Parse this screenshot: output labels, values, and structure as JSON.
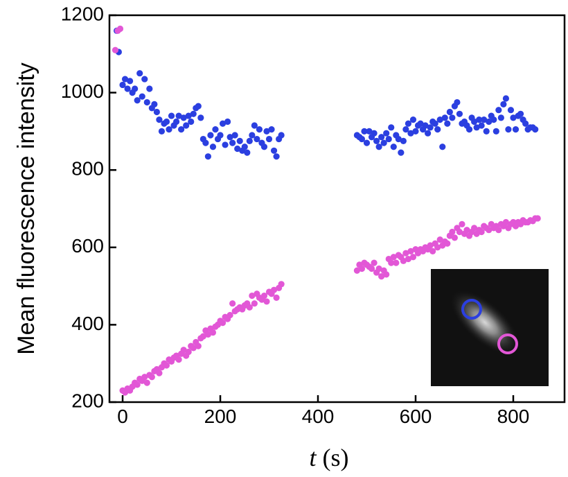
{
  "chart_data": {
    "type": "scatter",
    "x_label_symbol": "t",
    "x_label_unit": "(s)",
    "y_label": "Mean fluorescence intensity",
    "xlim": [
      -27,
      905
    ],
    "ylim": [
      200,
      1200
    ],
    "xticks": [
      0,
      200,
      400,
      600,
      800
    ],
    "yticks": [
      200,
      400,
      600,
      800,
      1000,
      1200
    ],
    "series": [
      {
        "color": "#2b3fe0",
        "x": [
          -12,
          -8,
          0,
          5,
          10,
          15,
          20,
          25,
          30,
          35,
          40,
          45,
          50,
          55,
          60,
          65,
          70,
          75,
          80,
          85,
          90,
          95,
          100,
          105,
          110,
          115,
          120,
          125,
          130,
          135,
          140,
          145,
          150,
          155,
          160,
          165,
          170,
          175,
          180,
          185,
          190,
          195,
          200,
          205,
          210,
          215,
          220,
          225,
          230,
          235,
          240,
          245,
          250,
          255,
          260,
          265,
          270,
          275,
          280,
          285,
          290,
          295,
          300,
          305,
          310,
          315,
          320,
          325,
          480,
          485,
          490,
          495,
          500,
          505,
          510,
          515,
          520,
          525,
          530,
          535,
          540,
          545,
          550,
          555,
          560,
          565,
          570,
          575,
          580,
          585,
          590,
          595,
          600,
          605,
          610,
          615,
          620,
          625,
          630,
          635,
          640,
          645,
          650,
          655,
          660,
          665,
          670,
          675,
          680,
          685,
          690,
          695,
          700,
          705,
          710,
          715,
          720,
          725,
          730,
          735,
          740,
          745,
          750,
          755,
          760,
          765,
          770,
          775,
          780,
          785,
          790,
          795,
          800,
          805,
          810,
          815,
          820,
          825,
          830,
          835,
          840,
          845
        ],
        "values": [
          1160,
          1105,
          1020,
          1035,
          1010,
          1030,
          1000,
          1010,
          980,
          1050,
          990,
          1035,
          975,
          1010,
          960,
          970,
          950,
          930,
          900,
          920,
          925,
          905,
          940,
          915,
          925,
          940,
          905,
          935,
          915,
          940,
          925,
          945,
          960,
          965,
          935,
          880,
          870,
          835,
          890,
          860,
          905,
          880,
          890,
          920,
          865,
          925,
          885,
          870,
          890,
          855,
          875,
          850,
          860,
          845,
          875,
          890,
          915,
          880,
          905,
          870,
          860,
          900,
          880,
          905,
          850,
          835,
          880,
          890,
          890,
          885,
          880,
          900,
          870,
          900,
          885,
          895,
          875,
          860,
          885,
          870,
          895,
          880,
          910,
          860,
          890,
          880,
          845,
          875,
          905,
          920,
          895,
          930,
          900,
          915,
          920,
          905,
          915,
          895,
          910,
          925,
          920,
          905,
          930,
          860,
          935,
          920,
          950,
          935,
          965,
          975,
          945,
          920,
          925,
          915,
          905,
          935,
          925,
          910,
          930,
          915,
          930,
          900,
          925,
          940,
          930,
          900,
          955,
          935,
          970,
          985,
          905,
          955,
          935,
          905,
          940,
          945,
          930,
          920,
          905,
          910,
          910,
          905
        ]
      },
      {
        "color": "#e257d6",
        "x": [
          -15,
          -10,
          -5,
          0,
          5,
          10,
          15,
          20,
          25,
          30,
          35,
          40,
          45,
          50,
          55,
          60,
          65,
          70,
          75,
          80,
          85,
          90,
          95,
          100,
          105,
          110,
          115,
          120,
          125,
          130,
          135,
          140,
          145,
          150,
          155,
          160,
          165,
          170,
          175,
          180,
          185,
          190,
          195,
          200,
          205,
          210,
          215,
          220,
          225,
          230,
          235,
          240,
          245,
          250,
          255,
          260,
          265,
          270,
          275,
          280,
          285,
          290,
          295,
          300,
          305,
          310,
          315,
          320,
          325,
          480,
          485,
          490,
          495,
          500,
          505,
          510,
          515,
          520,
          525,
          530,
          535,
          540,
          545,
          550,
          555,
          560,
          565,
          570,
          575,
          580,
          585,
          590,
          595,
          600,
          605,
          610,
          615,
          620,
          625,
          630,
          635,
          640,
          645,
          650,
          655,
          660,
          665,
          670,
          675,
          680,
          685,
          690,
          695,
          700,
          705,
          710,
          715,
          720,
          725,
          730,
          735,
          740,
          745,
          750,
          755,
          760,
          765,
          770,
          775,
          780,
          785,
          790,
          795,
          800,
          805,
          810,
          815,
          820,
          825,
          830,
          835,
          840,
          845,
          850
        ],
        "values": [
          1110,
          1160,
          1165,
          230,
          225,
          235,
          230,
          240,
          250,
          245,
          260,
          255,
          265,
          250,
          270,
          265,
          280,
          285,
          275,
          290,
          300,
          295,
          310,
          305,
          315,
          320,
          310,
          325,
          335,
          320,
          330,
          345,
          340,
          355,
          345,
          365,
          370,
          385,
          375,
          390,
          380,
          395,
          400,
          410,
          405,
          420,
          415,
          425,
          455,
          435,
          440,
          445,
          440,
          450,
          455,
          445,
          475,
          455,
          480,
          470,
          465,
          475,
          460,
          485,
          480,
          490,
          470,
          495,
          505,
          540,
          555,
          545,
          560,
          555,
          550,
          545,
          560,
          535,
          545,
          525,
          540,
          530,
          570,
          560,
          575,
          560,
          580,
          575,
          565,
          585,
          570,
          590,
          575,
          595,
          585,
          595,
          590,
          600,
          595,
          605,
          590,
          610,
          600,
          620,
          605,
          615,
          610,
          630,
          640,
          625,
          650,
          640,
          660,
          635,
          645,
          630,
          640,
          650,
          635,
          645,
          640,
          655,
          650,
          645,
          660,
          650,
          655,
          645,
          660,
          655,
          665,
          650,
          660,
          665,
          655,
          665,
          660,
          670,
          665,
          665,
          670,
          668,
          675,
          675
        ]
      }
    ]
  }
}
